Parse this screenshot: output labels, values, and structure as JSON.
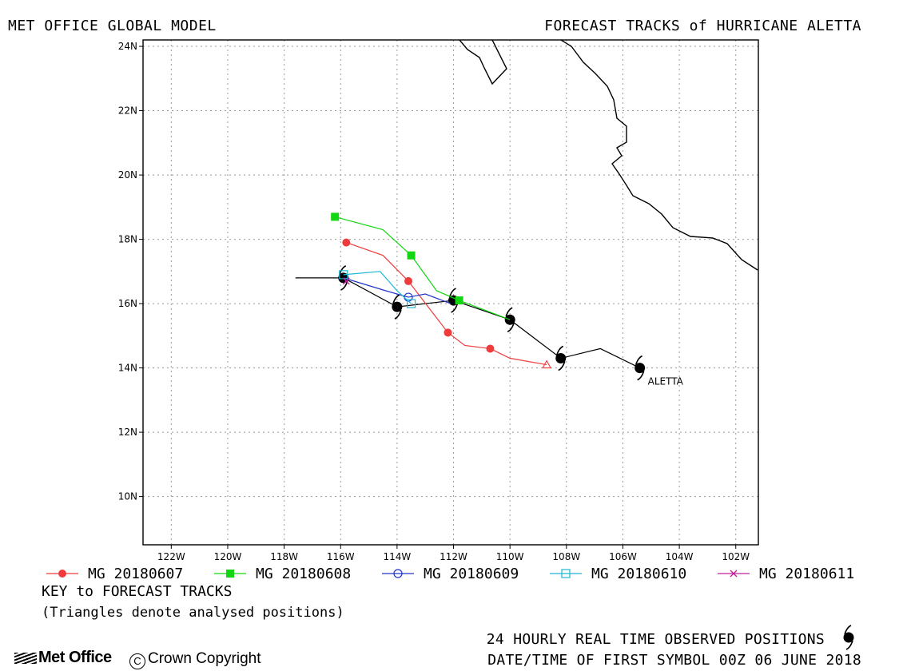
{
  "header": {
    "left": "MET OFFICE GLOBAL MODEL",
    "right": "FORECAST TRACKS of HURRICANE ALETTA"
  },
  "map": {
    "lon_range": [
      -123,
      -101.2
    ],
    "lat_range": [
      8.5,
      24.2
    ],
    "lon_ticks": [
      "122W",
      "120W",
      "118W",
      "116W",
      "114W",
      "112W",
      "110W",
      "108W",
      "106W",
      "104W",
      "102W"
    ],
    "lat_ticks": [
      "24N",
      "22N",
      "20N",
      "18N",
      "16N",
      "14N",
      "12N",
      "10N"
    ],
    "storm_label": "ALETTA",
    "colors": {
      "observed": "#000000",
      "mg20180607": "#ef3b3b",
      "mg20180608": "#11d611",
      "mg20180609": "#2233cc",
      "mg20180610": "#1ab8d4",
      "mg20180611": "#c0209a"
    }
  },
  "chart_data": {
    "type": "line",
    "series": [
      {
        "name": "observed",
        "lon": [
          -117.6,
          -115.9,
          -114.0,
          -112.0,
          -110.0,
          -108.2,
          -106.8,
          -105.4
        ],
        "lat": [
          16.8,
          16.8,
          15.9,
          16.1,
          15.5,
          14.3,
          14.6,
          14.0
        ],
        "symbols_lon": [
          -115.9,
          -114.0,
          -112.0,
          -110.0,
          -108.2,
          -105.4
        ],
        "symbols_lat": [
          16.8,
          15.9,
          16.1,
          15.5,
          14.3,
          14.0
        ]
      },
      {
        "name": "MG 20180607",
        "lon": [
          -108.7,
          -110.0,
          -110.7,
          -111.6,
          -112.2,
          -113.6,
          -114.5,
          -115.8
        ],
        "lat": [
          14.1,
          14.3,
          14.6,
          14.7,
          15.1,
          16.7,
          17.5,
          17.9
        ],
        "markers": [
          false,
          false,
          true,
          false,
          true,
          true,
          false,
          true
        ]
      },
      {
        "name": "MG 20180608",
        "lon": [
          -110.0,
          -111.8,
          -112.6,
          -113.5,
          -114.5,
          -116.2
        ],
        "lat": [
          15.5,
          16.1,
          16.4,
          17.5,
          18.3,
          18.7
        ],
        "markers": [
          false,
          true,
          false,
          true,
          false,
          true
        ]
      },
      {
        "name": "MG 20180609",
        "lon": [
          -112.1,
          -113.0,
          -113.6,
          -114.4,
          -115.9
        ],
        "lat": [
          16.0,
          16.3,
          16.2,
          16.4,
          16.8
        ],
        "markers": [
          false,
          false,
          true,
          false,
          false
        ]
      },
      {
        "name": "MG 20180610",
        "lon": [
          -113.5,
          -114.0,
          -114.6,
          -115.9
        ],
        "lat": [
          16.0,
          16.4,
          17.0,
          16.9
        ],
        "markers": [
          true,
          false,
          false,
          true
        ]
      },
      {
        "name": "MG 20180611",
        "lon": [
          -115.9,
          -115.8
        ],
        "lat": [
          16.8,
          16.7
        ],
        "markers": [
          false,
          true
        ]
      }
    ]
  },
  "legend": [
    {
      "label": "MG 20180607",
      "marker": "filled-circle",
      "color": "#ef3b3b"
    },
    {
      "label": "MG 20180608",
      "marker": "filled-square",
      "color": "#11d611"
    },
    {
      "label": "MG 20180609",
      "marker": "open-circle",
      "color": "#2233cc"
    },
    {
      "label": "MG 20180610",
      "marker": "open-square",
      "color": "#1ab8d4"
    },
    {
      "label": "MG 20180611",
      "marker": "cross",
      "color": "#c0209a"
    }
  ],
  "notes": {
    "key": "KEY to FORECAST TRACKS",
    "triangles": "(Triangles denote analysed positions)",
    "observed": "24 HOURLY REAL TIME OBSERVED POSITIONS",
    "datetime": "DATE/TIME OF FIRST SYMBOL 00Z 06 JUNE 2018"
  },
  "footer": {
    "logo": "Met Office",
    "copyright": "Crown Copyright"
  }
}
